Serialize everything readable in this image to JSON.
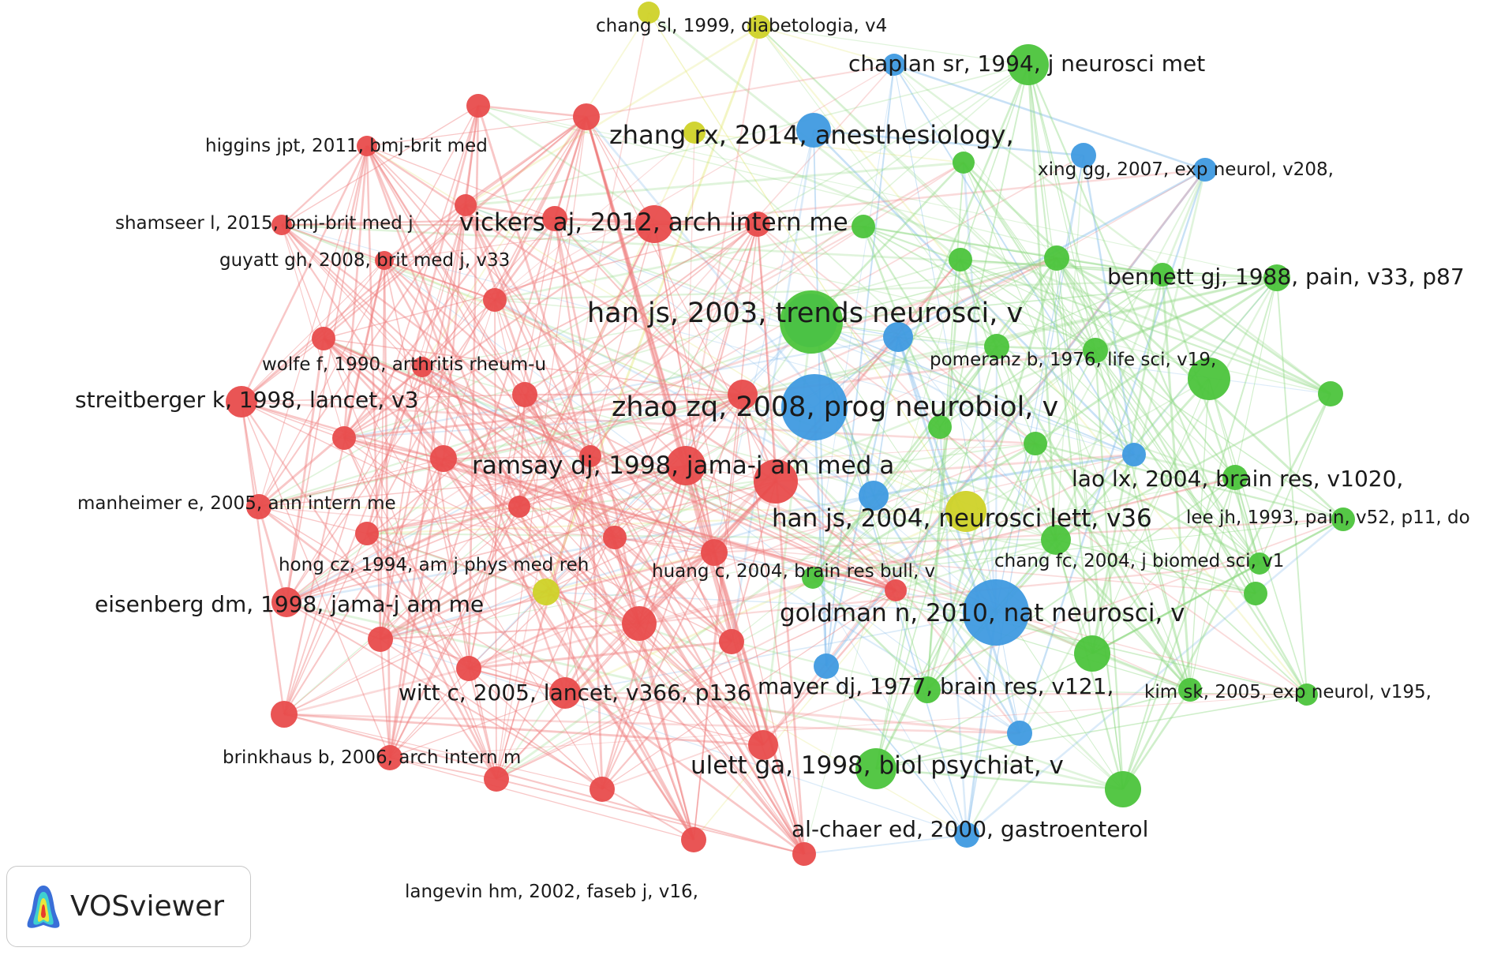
{
  "colors": {
    "red": "#e84c4c",
    "green": "#4cc43c",
    "blue": "#3f9ae0",
    "yellow": "#cfd228"
  },
  "logo": {
    "text": "VOSviewer",
    "icon": "vosviewer-logo-icon"
  },
  "labels": [
    {
      "text": "chang sl, 1999, diabetologia, v4",
      "size": "s"
    },
    {
      "text": "chaplan sr, 1994, j neurosci met",
      "size": "m"
    },
    {
      "text": "zhang rx, 2014, anesthesiology,",
      "size": "l"
    },
    {
      "text": "higgins jpt, 2011, bmj-brit med",
      "size": "s"
    },
    {
      "text": "xing gg, 2007, exp neurol, v208,",
      "size": "s"
    },
    {
      "text": "shamseer l, 2015, bmj-brit med j",
      "size": "s"
    },
    {
      "text": "vickers aj, 2012, arch intern me",
      "size": "l"
    },
    {
      "text": "guyatt gh, 2008, brit med j, v33",
      "size": "s"
    },
    {
      "text": "bennett gj, 1988, pain, v33, p87",
      "size": "m"
    },
    {
      "text": "han js, 2003, trends neurosci, v",
      "size": "xl"
    },
    {
      "text": "pomeranz b, 1976, life sci, v19,",
      "size": "s"
    },
    {
      "text": "wolfe f, 1990, arthritis rheum-u",
      "size": "s"
    },
    {
      "text": "streitberger k, 1998, lancet, v3",
      "size": "m"
    },
    {
      "text": "zhao zq, 2008, prog neurobiol, v",
      "size": "xl"
    },
    {
      "text": "ramsay dj, 1998, jama-j am med a",
      "size": "l"
    },
    {
      "text": "lao lx, 2004, brain res, v1020,",
      "size": "m"
    },
    {
      "text": "manheimer e, 2005, ann intern me",
      "size": "s"
    },
    {
      "text": "han js, 2004, neurosci lett, v36",
      "size": "l"
    },
    {
      "text": "lee jh, 1993, pain, v52, p11, do",
      "size": "s"
    },
    {
      "text": "chang fc, 2004, j biomed sci, v1",
      "size": "s"
    },
    {
      "text": "hong cz, 1994, am j phys med reh",
      "size": "s"
    },
    {
      "text": "huang c, 2004, brain res bull, v",
      "size": "s"
    },
    {
      "text": "eisenberg dm, 1998, jama-j am me",
      "size": "m"
    },
    {
      "text": "goldman n, 2010, nat neurosci, v",
      "size": "l"
    },
    {
      "text": "witt c, 2005, lancet, v366, p136",
      "size": "m"
    },
    {
      "text": "mayer dj, 1977, brain res, v121,",
      "size": "m"
    },
    {
      "text": "kim sk, 2005, exp neurol, v195,",
      "size": "s"
    },
    {
      "text": "brinkhaus b, 2006, arch intern m",
      "size": "s"
    },
    {
      "text": "ulett ga, 1998, biol psychiat, v",
      "size": "l"
    },
    {
      "text": "al-chaer ed, 2000, gastroenterol",
      "size": "m"
    },
    {
      "text": "langevin hm, 2002, faseb j, v16,",
      "size": "s"
    }
  ]
}
